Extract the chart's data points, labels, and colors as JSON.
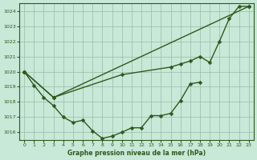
{
  "xlabel": "Graphe pression niveau de la mer (hPa)",
  "x_ticks": [
    0,
    1,
    2,
    3,
    4,
    5,
    6,
    7,
    8,
    9,
    10,
    11,
    12,
    13,
    14,
    15,
    16,
    17,
    18,
    19,
    20,
    21,
    22,
    23
  ],
  "ylim": [
    1015.5,
    1024.5
  ],
  "yticks": [
    1016,
    1017,
    1018,
    1019,
    1020,
    1021,
    1022,
    1023,
    1024
  ],
  "xlim": [
    -0.5,
    23.5
  ],
  "bg_color": "#c8e8d8",
  "grid_color": "#99bbaa",
  "line_color": "#2d5a1b",
  "s1x": [
    0,
    1,
    2,
    3,
    4,
    5,
    6,
    7,
    8,
    9,
    10,
    11,
    12,
    13,
    14,
    15,
    16,
    17,
    18
  ],
  "s1y": [
    1020.0,
    1019.1,
    1018.3,
    1017.75,
    1017.0,
    1016.65,
    1016.8,
    1016.1,
    1015.6,
    1015.75,
    1016.0,
    1016.3,
    1016.3,
    1017.1,
    1017.1,
    1017.25,
    1018.1,
    1019.2,
    1019.3
  ],
  "s2x": [
    0,
    3,
    10,
    15,
    16,
    17,
    18,
    19,
    20,
    21,
    22,
    23
  ],
  "s2y": [
    1020.0,
    1018.3,
    1019.8,
    1020.3,
    1020.5,
    1020.7,
    1021.0,
    1020.6,
    1022.0,
    1023.5,
    1024.3,
    1024.3
  ],
  "s3x": [
    0,
    3,
    23
  ],
  "s3y": [
    1020.0,
    1018.3,
    1024.3
  ]
}
